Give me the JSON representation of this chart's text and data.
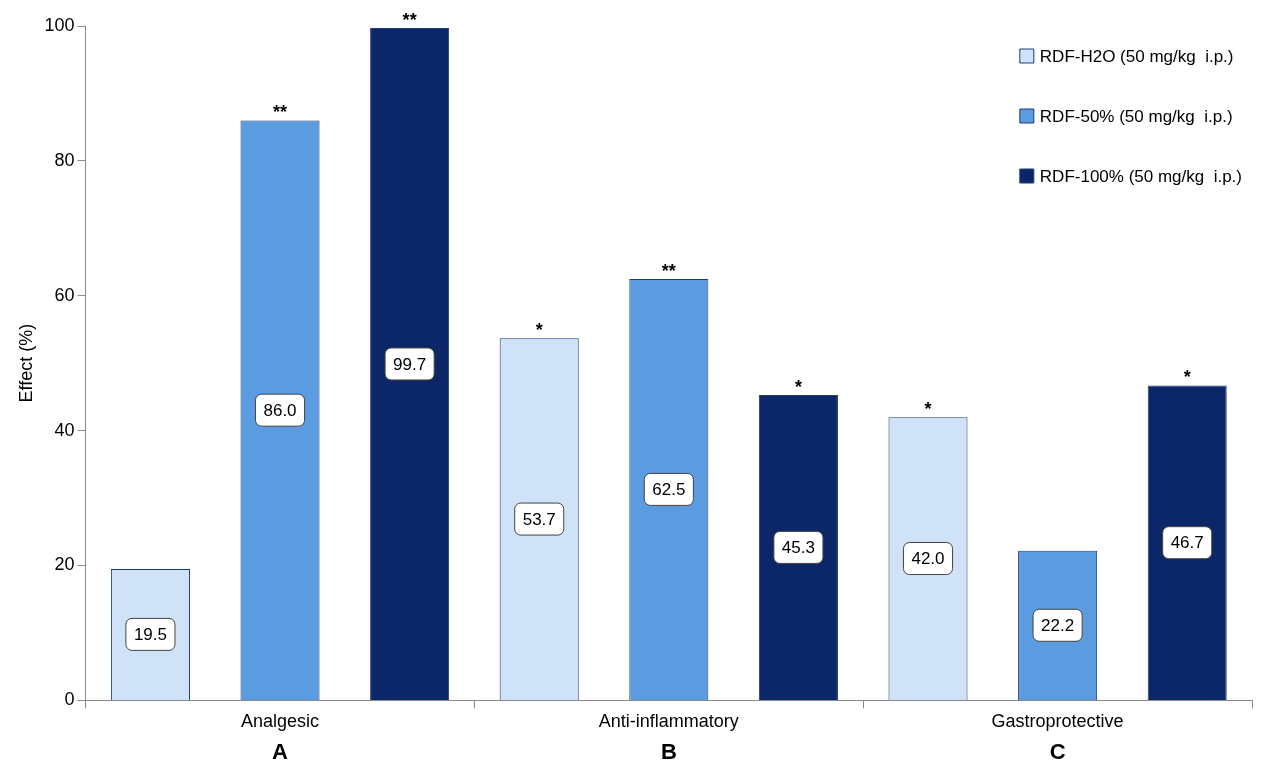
{
  "chart_data": {
    "type": "bar",
    "ylabel": "Effect (%)",
    "categories": [
      "Analgesic",
      "Anti-inflammatory",
      "Gastroprotective"
    ],
    "series": [
      {
        "name": "RDF-H2O (50 mg/kg  i.p.)",
        "color": "#cfe2f8",
        "values": [
          19.5,
          53.7,
          42.0
        ],
        "value_labels": [
          "19.5",
          "53.7",
          "42.0"
        ]
      },
      {
        "name": "RDF-50% (50 mg/kg  i.p.)",
        "color": "#5b9be0",
        "values": [
          86.0,
          62.5,
          22.2
        ],
        "value_labels": [
          "86.0",
          "62.5",
          "22.2"
        ]
      },
      {
        "name": "RDF-100% (50 mg/kg  i.p.)",
        "color": "#0b2767",
        "values": [
          99.7,
          45.3,
          46.7
        ],
        "value_labels": [
          "99.7",
          "45.3",
          "46.7"
        ]
      }
    ],
    "ylim": [
      0,
      100
    ],
    "yticks": [
      0,
      20,
      40,
      60,
      80,
      100
    ],
    "grid": false,
    "legend": "top right",
    "annotations": [
      "**",
      "**",
      "*",
      "**",
      "*",
      "*",
      "*",
      "A",
      "B",
      "C"
    ]
  }
}
